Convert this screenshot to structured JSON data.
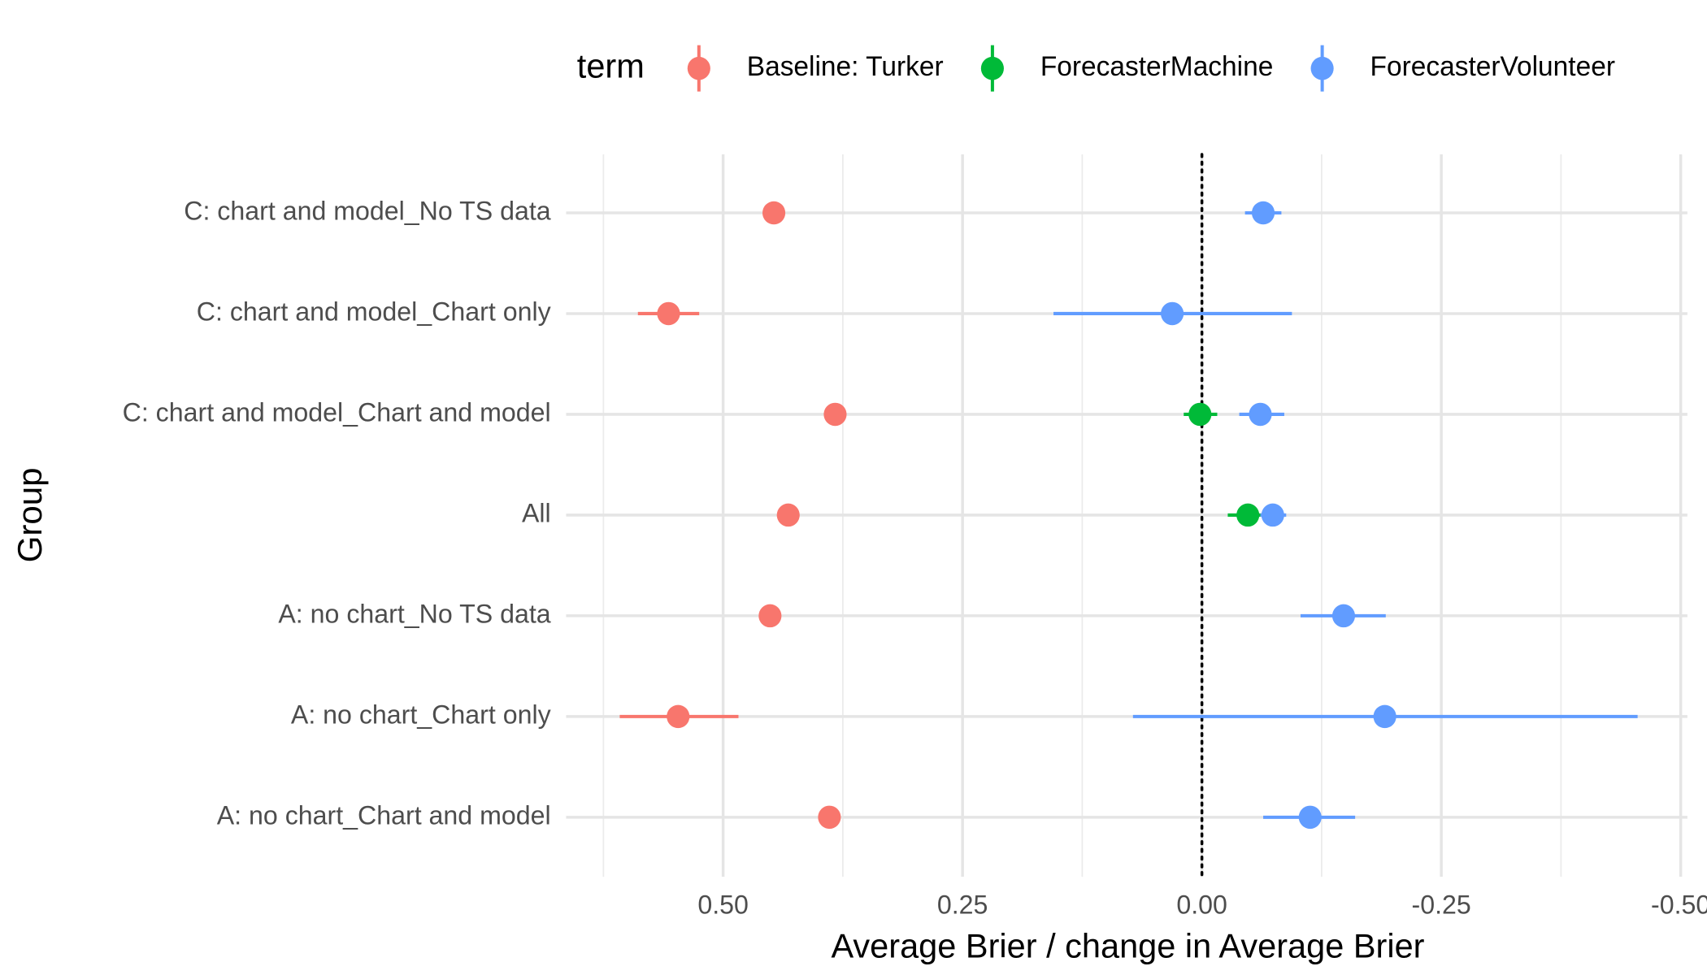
{
  "chart_data": {
    "type": "pointrange",
    "x_label": "Average Brier / change in Average Brier",
    "y_label": "Group",
    "legend_title": "term",
    "legend_position": "top",
    "categories": [
      "C: chart and model_No TS data",
      "C: chart and model_Chart only",
      "C: chart and model_Chart and model",
      "All",
      "A: no chart_No TS data",
      "A: no chart_Chart only",
      "A: no chart_Chart and model"
    ],
    "series": [
      {
        "name": "Baseline: Turker",
        "color": "#F8766D",
        "values": [
          0.447,
          0.557,
          0.383,
          0.432,
          0.451,
          0.547,
          0.389
        ],
        "low": [
          null,
          0.525,
          null,
          null,
          null,
          0.484,
          null
        ],
        "high": [
          null,
          0.589,
          null,
          null,
          null,
          0.608,
          null
        ]
      },
      {
        "name": "ForecasterMachine",
        "color": "#00BA38",
        "values": [
          null,
          null,
          0.002,
          -0.048,
          null,
          null,
          null
        ],
        "low": [
          null,
          null,
          -0.016,
          -0.064,
          null,
          null,
          null
        ],
        "high": [
          null,
          null,
          0.019,
          -0.027,
          null,
          null,
          null
        ]
      },
      {
        "name": "ForecasterVolunteer",
        "color": "#619CFF",
        "values": [
          -0.064,
          0.031,
          -0.061,
          -0.074,
          -0.148,
          -0.191,
          -0.113
        ],
        "low": [
          -0.083,
          -0.094,
          -0.086,
          -0.088,
          -0.192,
          -0.455,
          -0.16
        ],
        "high": [
          -0.045,
          0.155,
          -0.039,
          -0.061,
          -0.103,
          0.072,
          -0.064
        ]
      }
    ],
    "xlim": [
      0.664,
      -0.507
    ],
    "xticks": [
      {
        "value": 0.5,
        "label": "0.50"
      },
      {
        "value": 0.25,
        "label": "0.25"
      },
      {
        "value": 0,
        "label": "0.00"
      },
      {
        "value": -0.25,
        "label": "-0.25"
      },
      {
        "value": -0.5,
        "label": "-0.50"
      }
    ],
    "vline": 0,
    "grid": true
  }
}
